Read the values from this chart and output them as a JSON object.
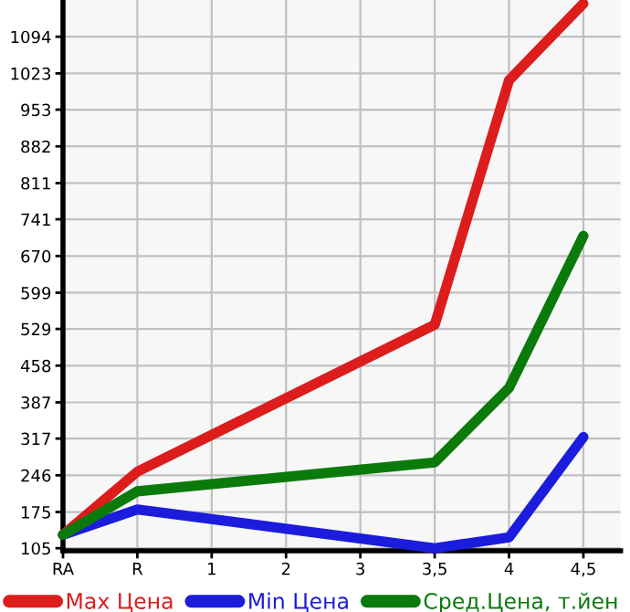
{
  "chart_data": {
    "type": "line",
    "categories": [
      "RA",
      "R",
      "1",
      "2",
      "3",
      "3,5",
      "4",
      "4,5"
    ],
    "series": [
      {
        "name": "Max Цена",
        "color": "#dd1c1c",
        "values": [
          131,
          253,
          null,
          null,
          null,
          537,
          1010,
          1158
        ]
      },
      {
        "name": "Min Цена",
        "color": "#1c1cdd",
        "values": [
          131,
          180,
          null,
          null,
          null,
          105,
          126,
          320
        ]
      },
      {
        "name": "Сред.Цена, т.йен",
        "color": "#0a7a0a",
        "values": [
          131,
          215,
          null,
          null,
          null,
          271,
          415,
          709
        ]
      }
    ],
    "ylim": [
      100,
      1165
    ],
    "yticks": [
      105,
      175,
      246,
      317,
      387,
      458,
      529,
      599,
      670,
      741,
      811,
      882,
      953,
      1023,
      1094
    ],
    "grid": true,
    "legend": "bottom",
    "marker": "none",
    "line_style": "solid"
  }
}
